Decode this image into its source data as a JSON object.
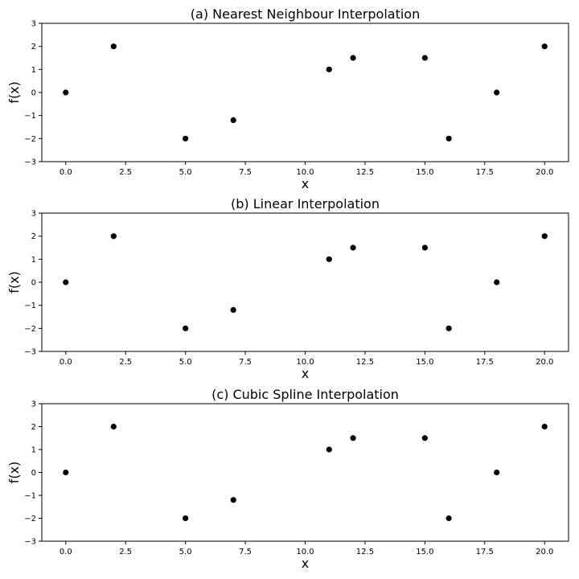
{
  "chart_data": [
    {
      "type": "scatter",
      "title": "(a) Nearest Neighbour Interpolation",
      "xlabel": "x",
      "ylabel": "f(x)",
      "xlim": [
        -1,
        21
      ],
      "ylim": [
        -3,
        3
      ],
      "xticks": [
        "0.0",
        "2.5",
        "5.0",
        "7.5",
        "10.0",
        "12.5",
        "15.0",
        "17.5",
        "20.0"
      ],
      "yticks": [
        "3",
        "2",
        "1",
        "0",
        "−1",
        "−2",
        "−3"
      ],
      "grid": false,
      "color": "#000000",
      "x": [
        0,
        2,
        5,
        7,
        11,
        12,
        15,
        16,
        18,
        20
      ],
      "y": [
        0,
        2,
        -2,
        -1.2,
        1,
        1.5,
        1.5,
        -2,
        0,
        2
      ]
    },
    {
      "type": "scatter",
      "title": "(b) Linear Interpolation",
      "xlabel": "x",
      "ylabel": "f(x)",
      "xlim": [
        -1,
        21
      ],
      "ylim": [
        -3,
        3
      ],
      "xticks": [
        "0.0",
        "2.5",
        "5.0",
        "7.5",
        "10.0",
        "12.5",
        "15.0",
        "17.5",
        "20.0"
      ],
      "yticks": [
        "3",
        "2",
        "1",
        "0",
        "−1",
        "−2",
        "−3"
      ],
      "grid": false,
      "color": "#000000",
      "x": [
        0,
        2,
        5,
        7,
        11,
        12,
        15,
        16,
        18,
        20
      ],
      "y": [
        0,
        2,
        -2,
        -1.2,
        1,
        1.5,
        1.5,
        -2,
        0,
        2
      ]
    },
    {
      "type": "scatter",
      "title": "(c) Cubic Spline Interpolation",
      "xlabel": "x",
      "ylabel": "f(x)",
      "xlim": [
        -1,
        21
      ],
      "ylim": [
        -3,
        3
      ],
      "xticks": [
        "0.0",
        "2.5",
        "5.0",
        "7.5",
        "10.0",
        "12.5",
        "15.0",
        "17.5",
        "20.0"
      ],
      "yticks": [
        "3",
        "2",
        "1",
        "0",
        "−1",
        "−2",
        "−3"
      ],
      "grid": false,
      "color": "#000000",
      "x": [
        0,
        2,
        5,
        7,
        11,
        12,
        15,
        16,
        18,
        20
      ],
      "y": [
        0,
        2,
        -2,
        -1.2,
        1,
        1.5,
        1.5,
        -2,
        0,
        2
      ]
    }
  ]
}
